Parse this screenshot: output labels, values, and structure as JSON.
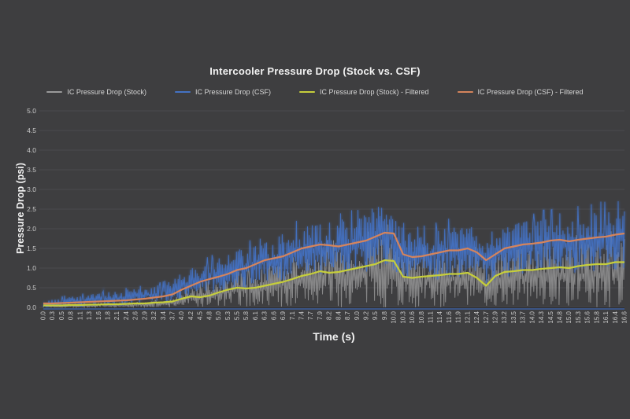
{
  "window": {
    "background": "#3e3e40"
  },
  "colors": {
    "background": "#3e3e40",
    "gridline": "#4b4b4e",
    "tick_text": "#c9c9c9",
    "title_text": "#f2f2f2",
    "legend_text": "#d6d6d6",
    "axis_baseline": "#3a5d9e"
  },
  "chart_data": {
    "type": "line",
    "title": "Intercooler Pressure Drop (Stock vs. CSF)",
    "xlabel": "Time (s)",
    "ylabel": "Pressure Drop (psi)",
    "ylim": [
      0.0,
      5.0
    ],
    "ytick_step": 0.5,
    "yticks": [
      "0.0",
      "0.5",
      "1.0",
      "1.5",
      "2.0",
      "2.5",
      "3.0",
      "3.5",
      "4.0",
      "4.5",
      "5.0"
    ],
    "grid": true,
    "legend_position": "top",
    "categories": [
      "0.0",
      "0.3",
      "0.5",
      "0.8",
      "1.1",
      "1.3",
      "1.6",
      "1.8",
      "2.1",
      "2.4",
      "2.6",
      "2.9",
      "3.2",
      "3.4",
      "3.7",
      "4.0",
      "4.2",
      "4.5",
      "4.8",
      "5.0",
      "5.3",
      "5.5",
      "5.8",
      "6.1",
      "6.3",
      "6.6",
      "6.9",
      "7.1",
      "7.4",
      "7.7",
      "7.9",
      "8.2",
      "8.4",
      "8.7",
      "9.0",
      "9.2",
      "9.5",
      "9.8",
      "10.0",
      "10.3",
      "10.6",
      "10.8",
      "11.1",
      "11.4",
      "11.6",
      "11.9",
      "12.1",
      "12.4",
      "12.7",
      "12.9",
      "13.2",
      "13.5",
      "13.7",
      "14.0",
      "14.3",
      "14.5",
      "14.8",
      "15.0",
      "15.3",
      "15.6",
      "15.8",
      "16.1",
      "16.4",
      "16.6"
    ],
    "series": [
      {
        "name": "IC Pressure Drop (Stock)",
        "kind": "raw-noise",
        "color": "#9a9a9a",
        "opacity": 0.8,
        "seed": 7,
        "low": [
          0,
          0,
          0,
          0,
          0,
          0,
          0,
          0,
          0,
          0,
          0,
          0,
          0,
          0,
          0,
          0,
          0,
          0,
          0,
          0,
          0,
          0,
          0,
          0,
          0,
          0,
          0,
          0,
          0,
          0,
          0,
          0,
          0,
          0,
          0,
          0,
          0,
          0,
          0,
          0,
          0,
          0,
          0,
          0,
          0,
          0,
          0,
          0,
          0,
          0,
          0,
          0,
          0,
          0,
          0,
          0,
          0,
          0,
          0,
          0,
          0,
          0,
          0,
          0
        ],
        "high": [
          0.05,
          0.05,
          0.06,
          0.07,
          0.08,
          0.08,
          0.09,
          0.1,
          0.1,
          0.12,
          0.12,
          0.14,
          0.16,
          0.18,
          0.25,
          0.4,
          0.5,
          0.55,
          0.6,
          0.7,
          0.8,
          0.9,
          0.9,
          0.95,
          1.0,
          1.1,
          1.2,
          1.3,
          1.4,
          1.5,
          1.6,
          1.5,
          1.55,
          1.6,
          1.7,
          1.7,
          1.8,
          1.9,
          1.85,
          1.4,
          1.3,
          1.35,
          1.4,
          1.4,
          1.45,
          1.45,
          1.5,
          1.35,
          1.2,
          1.35,
          1.5,
          1.5,
          1.55,
          1.55,
          1.6,
          1.6,
          1.65,
          1.6,
          1.65,
          1.65,
          1.7,
          1.7,
          1.75,
          1.75
        ]
      },
      {
        "name": "IC Pressure Drop (CSF)",
        "kind": "raw-noise",
        "color": "#4472c4",
        "opacity": 0.9,
        "seed": 99,
        "low": [
          0.0,
          0.0,
          0.0,
          0.0,
          0.0,
          0.0,
          0.05,
          0.05,
          0.05,
          0.05,
          0.1,
          0.1,
          0.1,
          0.1,
          0.15,
          0.2,
          0.25,
          0.3,
          0.35,
          0.4,
          0.45,
          0.5,
          0.5,
          0.55,
          0.6,
          0.6,
          0.65,
          0.7,
          0.75,
          0.8,
          0.8,
          0.8,
          0.8,
          0.85,
          0.9,
          0.9,
          0.95,
          1.0,
          0.95,
          0.7,
          0.65,
          0.65,
          0.7,
          0.7,
          0.75,
          0.75,
          0.8,
          0.7,
          0.6,
          0.7,
          0.75,
          0.8,
          0.8,
          0.8,
          0.85,
          0.85,
          0.9,
          0.85,
          0.9,
          0.9,
          0.9,
          0.95,
          0.95,
          1.0
        ],
        "high": [
          0.15,
          0.2,
          0.25,
          0.3,
          0.3,
          0.35,
          0.35,
          0.4,
          0.4,
          0.45,
          0.5,
          0.5,
          0.55,
          0.6,
          0.7,
          0.9,
          1.0,
          1.1,
          1.2,
          1.3,
          1.4,
          1.5,
          1.5,
          1.7,
          1.8,
          1.8,
          1.9,
          2.0,
          2.1,
          2.1,
          2.2,
          2.2,
          2.2,
          2.3,
          2.3,
          2.4,
          2.6,
          2.65,
          2.5,
          2.0,
          1.9,
          1.9,
          2.0,
          2.0,
          2.1,
          2.1,
          2.1,
          2.0,
          1.9,
          2.0,
          2.1,
          2.1,
          2.2,
          2.2,
          2.3,
          2.3,
          2.4,
          2.3,
          2.4,
          2.4,
          2.5,
          2.5,
          2.5,
          2.55
        ]
      },
      {
        "name": "IC Pressure Drop (Stock) - Filtered",
        "kind": "filtered",
        "color": "#c6ce3b",
        "opacity": 1,
        "values": [
          0.05,
          0.05,
          0.05,
          0.06,
          0.06,
          0.07,
          0.07,
          0.08,
          0.08,
          0.09,
          0.1,
          0.1,
          0.12,
          0.13,
          0.15,
          0.22,
          0.28,
          0.26,
          0.3,
          0.38,
          0.45,
          0.5,
          0.48,
          0.5,
          0.55,
          0.6,
          0.65,
          0.72,
          0.8,
          0.85,
          0.92,
          0.88,
          0.9,
          0.95,
          1.0,
          1.05,
          1.1,
          1.2,
          1.18,
          0.78,
          0.75,
          0.78,
          0.8,
          0.82,
          0.85,
          0.85,
          0.88,
          0.75,
          0.55,
          0.8,
          0.9,
          0.92,
          0.95,
          0.95,
          0.98,
          1.0,
          1.02,
          1.0,
          1.05,
          1.08,
          1.1,
          1.1,
          1.15,
          1.15
        ]
      },
      {
        "name": "IC Pressure Drop (CSF) - Filtered",
        "kind": "filtered",
        "color": "#d5845c",
        "opacity": 1,
        "values": [
          0.1,
          0.1,
          0.11,
          0.12,
          0.13,
          0.14,
          0.15,
          0.16,
          0.17,
          0.18,
          0.2,
          0.22,
          0.25,
          0.28,
          0.33,
          0.45,
          0.55,
          0.65,
          0.72,
          0.78,
          0.85,
          0.95,
          1.0,
          1.1,
          1.2,
          1.25,
          1.3,
          1.4,
          1.5,
          1.55,
          1.6,
          1.58,
          1.55,
          1.6,
          1.65,
          1.7,
          1.8,
          1.9,
          1.88,
          1.35,
          1.28,
          1.3,
          1.35,
          1.4,
          1.45,
          1.45,
          1.5,
          1.4,
          1.2,
          1.35,
          1.5,
          1.55,
          1.6,
          1.62,
          1.65,
          1.7,
          1.72,
          1.68,
          1.72,
          1.75,
          1.78,
          1.8,
          1.85,
          1.88
        ]
      }
    ]
  }
}
